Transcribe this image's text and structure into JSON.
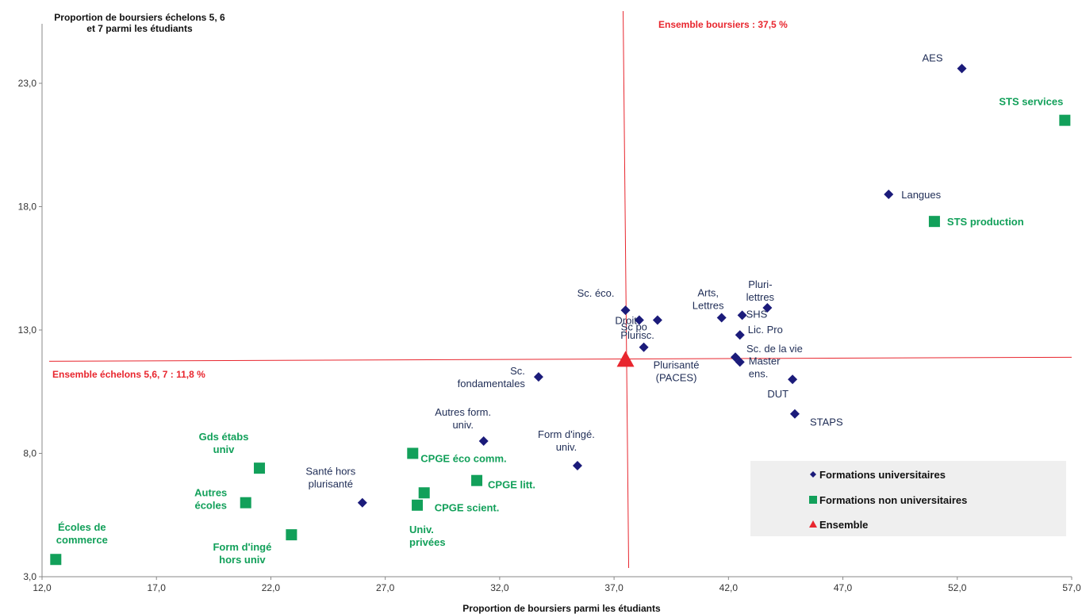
{
  "chart_data": {
    "type": "scatter",
    "title": "Proportion de boursiers échelons 5, 6\net 7 parmi les étudiants",
    "xlabel": "Proportion de boursiers parmi les étudiants",
    "ylabel": "Proportion de boursiers échelons 5, 6\net 7 parmi les étudiants",
    "xlim": [
      12,
      57
    ],
    "ylim": [
      3,
      26
    ],
    "xticks": [
      "12,0",
      "17,0",
      "22,0",
      "27,0",
      "32,0",
      "37,0",
      "42,0",
      "47,0",
      "52,0",
      "57,0"
    ],
    "yticks": [
      "3,0",
      "8,0",
      "13,0",
      "18,0",
      "23,0"
    ],
    "xtick_values": [
      12,
      17,
      22,
      27,
      32,
      37,
      42,
      47,
      52,
      57
    ],
    "ytick_values": [
      3,
      8,
      13,
      18,
      23
    ],
    "grid": false,
    "legend_position": "bottom-right",
    "colors": {
      "universitaires": "#1b1b7a",
      "non_universitaires": "#12a05a",
      "ensemble": "#e8262e",
      "reference_lines": "#e8262e",
      "legend_bg": "#efefef"
    },
    "reference_lines": {
      "vertical": {
        "x": 37.5,
        "label": "Ensemble boursiers : 37,5 %"
      },
      "horizontal": {
        "y": 11.8,
        "label": "Ensemble échelons 5,6, 7 : 11,8 %"
      }
    },
    "legend": [
      {
        "marker": "diamond",
        "label": "Formations universitaires"
      },
      {
        "marker": "square",
        "label": "Formations non universitaires"
      },
      {
        "marker": "triangle",
        "label": "Ensemble"
      }
    ],
    "series": [
      {
        "name": "Formations universitaires",
        "marker": "diamond",
        "points": [
          {
            "label": "AES",
            "x": 52.2,
            "y": 23.6
          },
          {
            "label": "Langues",
            "x": 49.0,
            "y": 18.5
          },
          {
            "label": "Sc. éco.",
            "x": 37.5,
            "y": 13.8
          },
          {
            "label": "Droit",
            "x": 38.1,
            "y": 13.4
          },
          {
            "label": "Sc po",
            "x": 38.9,
            "y": 13.4
          },
          {
            "label": "Plurisc.",
            "x": 38.3,
            "y": 12.3
          },
          {
            "label": "Arts,\nLettres",
            "x": 41.7,
            "y": 13.5
          },
          {
            "label": "Pluri-\nlettres",
            "x": 43.7,
            "y": 13.9
          },
          {
            "label": "SHS",
            "x": 42.6,
            "y": 13.6
          },
          {
            "label": "Lic. Pro",
            "x": 42.5,
            "y": 12.8
          },
          {
            "label": "Sc. de la vie",
            "x": 42.3,
            "y": 11.9
          },
          {
            "label": "Master\nens.",
            "x": 42.5,
            "y": 11.7
          },
          {
            "label": "DUT",
            "x": 44.8,
            "y": 11.0
          },
          {
            "label": "STAPS",
            "x": 44.9,
            "y": 9.6
          },
          {
            "label": "Sc.\nfondamentales",
            "x": 33.7,
            "y": 11.1
          },
          {
            "label": "Autres form.\nuniv.",
            "x": 31.3,
            "y": 8.5
          },
          {
            "label": "Form d'ingé.\nuniv.",
            "x": 35.4,
            "y": 7.5
          },
          {
            "label": "Santé hors\nplurisanté",
            "x": 26.0,
            "y": 6.0
          }
        ]
      },
      {
        "name": "Formations non universitaires",
        "marker": "square",
        "points": [
          {
            "label": "STS services",
            "x": 56.7,
            "y": 21.5
          },
          {
            "label": "STS production",
            "x": 51.0,
            "y": 17.4
          },
          {
            "label": "CPGE éco comm.",
            "x": 28.2,
            "y": 8.0
          },
          {
            "label": "CPGE litt.",
            "x": 31.0,
            "y": 6.9
          },
          {
            "label": "CPGE scient.",
            "x": 28.7,
            "y": 6.4
          },
          {
            "label": "Univ.\nprivées",
            "x": 28.4,
            "y": 5.9
          },
          {
            "label": "Gds étabs\nuniv",
            "x": 21.5,
            "y": 7.4
          },
          {
            "label": "Autres\nécoles",
            "x": 20.9,
            "y": 6.0
          },
          {
            "label": "Form d'ingé\nhors univ",
            "x": 22.9,
            "y": 4.7
          },
          {
            "label": "Écoles de\ncommerce",
            "x": 12.6,
            "y": 3.7
          }
        ]
      },
      {
        "name": "Ensemble",
        "marker": "triangle",
        "points": [
          {
            "label": "Plurisanté\n(PACES)",
            "x": 37.5,
            "y": 11.8
          }
        ]
      }
    ]
  }
}
